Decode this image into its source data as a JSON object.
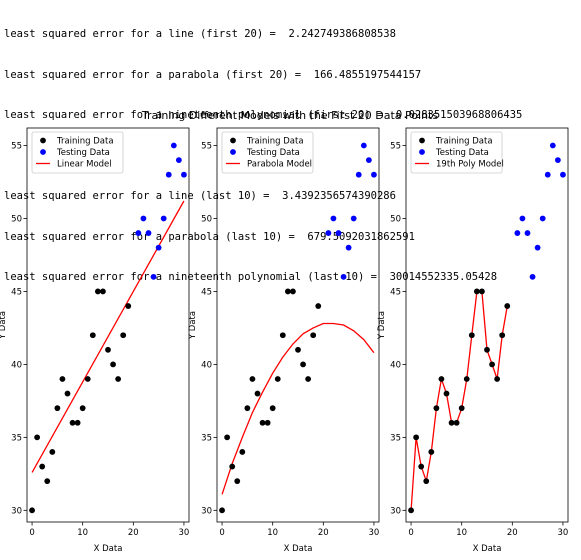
{
  "output": {
    "first_lines": [
      "least squared error for a line (first 20) =  2.242749386808538",
      "least squared error for a parabola (first 20) =  166.4855197544157",
      "least squared error for a nineteenth polynomial (first 20) =  0.028351503968806435"
    ],
    "last_lines": [
      "least squared error for a line (last 10) =  3.4392356574390286",
      "least squared error for a parabola (last 10) =  679.5092031862591",
      "least squared error for a nineteenth polynomial (last 10) =  30014552335.05428"
    ]
  },
  "figure": {
    "title": "Training Different Models with the First 20 Data Points",
    "xlabel": "X Data",
    "ylabel": "Y Data"
  },
  "colors": {
    "training": "#000000",
    "testing": "#0000ff",
    "model": "#ff0000"
  },
  "chart_data": [
    {
      "type": "scatter",
      "title": "",
      "xlabel": "X Data",
      "ylabel": "Y Data",
      "xlim": [
        -1,
        31
      ],
      "ylim": [
        29.2,
        56.2
      ],
      "xticks": [
        "0",
        "10",
        "20",
        "30"
      ],
      "yticks": [
        "30",
        "35",
        "40",
        "45",
        "50",
        "55"
      ],
      "legend": {
        "position": "top-left",
        "entries": [
          "Training Data",
          "Testing Data",
          "Linear Model"
        ]
      },
      "series": [
        {
          "name": "Training Data",
          "kind": "points",
          "x": [
            0,
            1,
            2,
            3,
            4,
            5,
            6,
            7,
            8,
            9,
            10,
            11,
            12,
            13,
            14,
            15,
            16,
            17,
            18,
            19
          ],
          "y": [
            30,
            35,
            33,
            32,
            34,
            37,
            39,
            38,
            36,
            36,
            37,
            39,
            42,
            45,
            45,
            41,
            40,
            39,
            42,
            44
          ]
        },
        {
          "name": "Testing Data",
          "kind": "points",
          "x": [
            21,
            22,
            23,
            24,
            25,
            26,
            27,
            28,
            29,
            30
          ],
          "y": [
            49,
            50,
            49,
            46,
            48,
            50,
            53,
            55,
            54,
            53
          ]
        },
        {
          "name": "Linear Model",
          "kind": "line",
          "x": [
            0,
            30
          ],
          "y": [
            32.6,
            51.2
          ]
        }
      ]
    },
    {
      "type": "scatter",
      "title": "",
      "xlabel": "X Data",
      "ylabel": "Y Data",
      "xlim": [
        -1,
        31
      ],
      "ylim": [
        29.2,
        56.2
      ],
      "xticks": [
        "0",
        "10",
        "20",
        "30"
      ],
      "yticks": [
        "30",
        "35",
        "40",
        "45",
        "50",
        "55"
      ],
      "legend": {
        "position": "top-left",
        "entries": [
          "Training Data",
          "Testing Data",
          "Parabola Model"
        ]
      },
      "series": [
        {
          "name": "Training Data",
          "kind": "points",
          "x": [
            0,
            1,
            2,
            3,
            4,
            5,
            6,
            7,
            8,
            9,
            10,
            11,
            12,
            13,
            14,
            15,
            16,
            17,
            18,
            19
          ],
          "y": [
            30,
            35,
            33,
            32,
            34,
            37,
            39,
            38,
            36,
            36,
            37,
            39,
            42,
            45,
            45,
            41,
            40,
            39,
            42,
            44
          ]
        },
        {
          "name": "Testing Data",
          "kind": "points",
          "x": [
            21,
            22,
            23,
            24,
            25,
            26,
            27,
            28,
            29,
            30
          ],
          "y": [
            49,
            50,
            49,
            46,
            48,
            50,
            53,
            55,
            54,
            53
          ]
        },
        {
          "name": "Parabola Model",
          "kind": "line",
          "x": [
            0,
            2,
            4,
            6,
            8,
            10,
            12,
            14,
            16,
            18,
            20,
            22,
            24,
            26,
            28,
            30
          ],
          "y": [
            31.1,
            33.2,
            35.0,
            36.7,
            38.1,
            39.4,
            40.5,
            41.4,
            42.1,
            42.5,
            42.8,
            42.8,
            42.7,
            42.3,
            41.7,
            40.8
          ]
        }
      ]
    },
    {
      "type": "scatter",
      "title": "",
      "xlabel": "X Data",
      "ylabel": "Y Data",
      "xlim": [
        -1,
        31
      ],
      "ylim": [
        29.2,
        56.2
      ],
      "xticks": [
        "0",
        "10",
        "20",
        "30"
      ],
      "yticks": [
        "30",
        "35",
        "40",
        "45",
        "50",
        "55"
      ],
      "legend": {
        "position": "top-left",
        "entries": [
          "Training Data",
          "Testing Data",
          "19th Poly Model"
        ]
      },
      "series": [
        {
          "name": "Training Data",
          "kind": "points",
          "x": [
            0,
            1,
            2,
            3,
            4,
            5,
            6,
            7,
            8,
            9,
            10,
            11,
            12,
            13,
            14,
            15,
            16,
            17,
            18,
            19
          ],
          "y": [
            30,
            35,
            33,
            32,
            34,
            37,
            39,
            38,
            36,
            36,
            37,
            39,
            42,
            45,
            45,
            41,
            40,
            39,
            42,
            44
          ]
        },
        {
          "name": "Testing Data",
          "kind": "points",
          "x": [
            21,
            22,
            23,
            24,
            25,
            26,
            27,
            28,
            29,
            30
          ],
          "y": [
            49,
            50,
            49,
            46,
            48,
            50,
            53,
            55,
            54,
            53
          ]
        },
        {
          "name": "19th Poly Model",
          "kind": "line",
          "x": [
            0,
            1,
            2,
            3,
            4,
            5,
            6,
            7,
            8,
            9,
            10,
            11,
            12,
            13,
            14,
            15,
            16,
            17,
            18,
            19
          ],
          "y": [
            30,
            35,
            33,
            32,
            34,
            37,
            39,
            38,
            36,
            36,
            37,
            39,
            42,
            45,
            45,
            41,
            40,
            39,
            42,
            44
          ]
        }
      ]
    }
  ]
}
